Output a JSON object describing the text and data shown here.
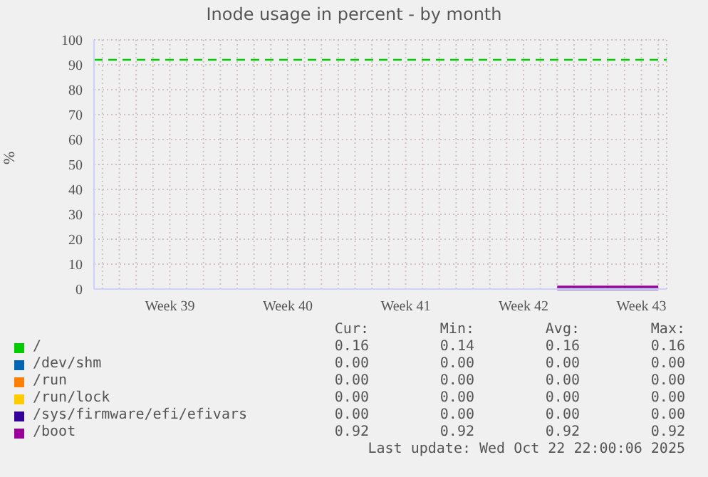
{
  "chart_data": {
    "type": "line",
    "title": "Inode usage in percent - by month",
    "ylabel": "%",
    "categories": [
      null,
      null,
      null,
      null,
      "Week 39",
      null,
      null,
      null,
      null,
      null,
      null,
      "Week 40",
      null,
      null,
      null,
      null,
      null,
      null,
      "Week 41",
      null,
      null,
      null,
      null,
      null,
      null,
      "Week 42",
      null,
      null,
      null,
      null,
      null,
      null,
      "Week 43",
      null
    ],
    "ylim": [
      0,
      100
    ],
    "yticks": [
      0,
      10,
      20,
      30,
      40,
      50,
      60,
      70,
      80,
      90,
      100
    ],
    "grid": true,
    "legend": "bottom",
    "marker": "none",
    "line_style": "solid",
    "series": [
      {
        "name": "/",
        "color": "#00cc00",
        "values": [
          null,
          null,
          null,
          null,
          null,
          null,
          null,
          null,
          null,
          null,
          null,
          null,
          null,
          null,
          null,
          null,
          null,
          null,
          null,
          null,
          null,
          null,
          null,
          null,
          null,
          null,
          null,
          null,
          null,
          null,
          null,
          null,
          null,
          null
        ]
      },
      {
        "name": "/dev/shm",
        "color": "#0066b3",
        "values": [
          null,
          null,
          null,
          null,
          null,
          null,
          null,
          null,
          null,
          null,
          null,
          null,
          null,
          null,
          null,
          null,
          null,
          null,
          null,
          null,
          null,
          null,
          null,
          null,
          null,
          null,
          null,
          null,
          null,
          null,
          null,
          null,
          null,
          null
        ]
      },
      {
        "name": "/run",
        "color": "#ff8000",
        "values": [
          null,
          null,
          null,
          null,
          null,
          null,
          null,
          null,
          null,
          null,
          null,
          null,
          null,
          null,
          null,
          null,
          null,
          null,
          null,
          null,
          null,
          null,
          null,
          null,
          null,
          null,
          null,
          null,
          null,
          null,
          null,
          null,
          null,
          null
        ]
      },
      {
        "name": "/run/lock",
        "color": "#ffcc00",
        "values": [
          null,
          null,
          null,
          null,
          null,
          null,
          null,
          null,
          null,
          null,
          null,
          null,
          null,
          null,
          null,
          null,
          null,
          null,
          null,
          null,
          null,
          null,
          null,
          null,
          null,
          null,
          null,
          null,
          null,
          null,
          null,
          null,
          null,
          null
        ]
      },
      {
        "name": "/sys/firmware/efi/efivars",
        "color": "#330099",
        "values": [
          null,
          null,
          null,
          null,
          null,
          null,
          null,
          null,
          null,
          null,
          null,
          null,
          null,
          null,
          null,
          null,
          null,
          null,
          null,
          null,
          null,
          null,
          null,
          null,
          null,
          null,
          null,
          0,
          0,
          0,
          0,
          0,
          0,
          0
        ]
      },
      {
        "name": "/boot",
        "color": "#990099",
        "values": [
          null,
          null,
          null,
          null,
          null,
          null,
          null,
          null,
          null,
          null,
          null,
          null,
          null,
          null,
          null,
          null,
          null,
          null,
          null,
          null,
          null,
          null,
          null,
          null,
          null,
          null,
          null,
          0.92,
          0.92,
          0.92,
          0.92,
          0.92,
          0.92,
          0.92
        ]
      }
    ],
    "ref_lines": [
      {
        "axis": "y",
        "value": 92,
        "color": "#00cc00",
        "line_style": "dashed"
      }
    ],
    "annotations": [
      "Cur:",
      "Min:",
      "Avg:",
      "Max:",
      "0.16",
      "0.14",
      "0.16",
      "0.16",
      "0.00",
      "0.00",
      "0.00",
      "0.00",
      "0.00",
      "0.00",
      "0.00",
      "0.00",
      "0.00",
      "0.00",
      "0.00",
      "0.00",
      "0.00",
      "0.00",
      "0.00",
      "0.00",
      "0.92",
      "0.92",
      "0.92",
      "0.92",
      "Last update: Wed Oct 22 22:00:06 2025"
    ]
  }
}
